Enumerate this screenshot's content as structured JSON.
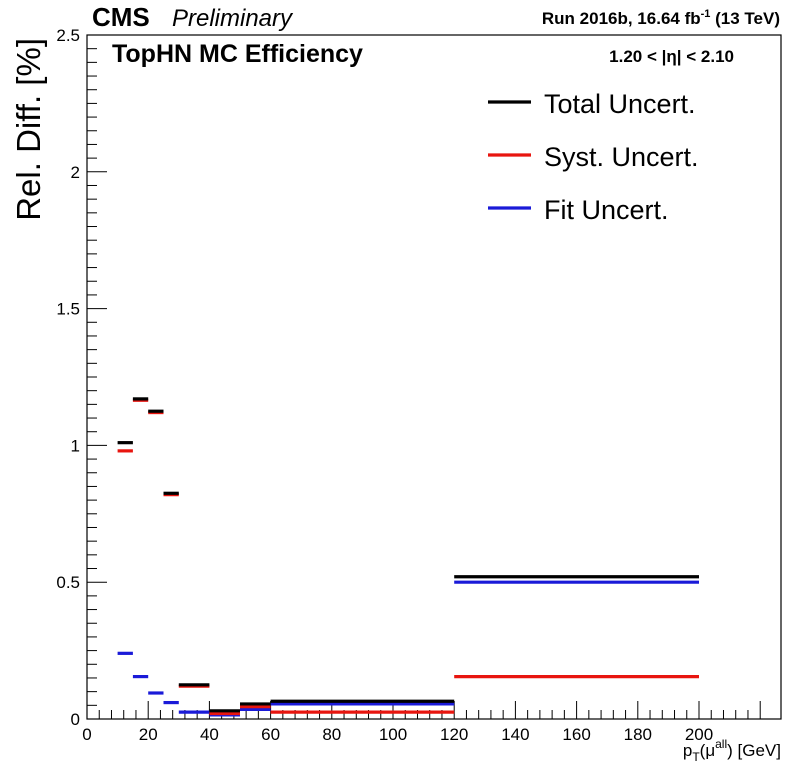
{
  "header": {
    "experiment": "CMS",
    "status": "Preliminary",
    "run_prefix": "Run 2016b,  16.64 fb",
    "run_superscript": "-1",
    "run_suffix": "  (13 TeV)",
    "plot_title": "TopHN MC Efficiency",
    "eta_range": "1.20 < |η| < 2.10"
  },
  "colors": {
    "total": "#000000",
    "syst": "#e8150f",
    "fit": "#1a1ad8"
  },
  "chart_data": {
    "type": "scatter",
    "ylabel": "Rel. Diff. [%]",
    "xlabel": {
      "base": "p",
      "sub": "T",
      "open": "(μ",
      "sup": "all",
      "close": ") [GeV]"
    },
    "xlim": [
      0,
      220
    ],
    "ylim": [
      0,
      2.5
    ],
    "x_ticks": [
      0,
      20,
      40,
      60,
      80,
      100,
      120,
      140,
      160,
      180,
      200
    ],
    "x_tick_labels": [
      "0",
      "20",
      "40",
      "60",
      "80",
      "100",
      "120",
      "140",
      "160",
      "180",
      "200"
    ],
    "y_ticks": [
      0,
      0.5,
      1,
      1.5,
      2,
      2.5
    ],
    "y_tick_labels": [
      "0",
      "0.5",
      "1",
      "1.5",
      "2",
      "2.5"
    ],
    "legend_position": "top-right",
    "series": [
      {
        "name": "Total Uncert.",
        "color": "#000000",
        "bins": [
          {
            "x": [
              10,
              15
            ],
            "y": 1.01
          },
          {
            "x": [
              15,
              20
            ],
            "y": 1.17
          },
          {
            "x": [
              20,
              25
            ],
            "y": 1.125
          },
          {
            "x": [
              25,
              30
            ],
            "y": 0.825
          },
          {
            "x": [
              30,
              40
            ],
            "y": 0.125
          },
          {
            "x": [
              40,
              50
            ],
            "y": 0.03
          },
          {
            "x": [
              50,
              60
            ],
            "y": 0.055
          },
          {
            "x": [
              60,
              120
            ],
            "y": 0.065
          },
          {
            "x": [
              120,
              200
            ],
            "y": 0.52
          }
        ]
      },
      {
        "name": "Syst. Uncert.",
        "color": "#e8150f",
        "bins": [
          {
            "x": [
              10,
              15
            ],
            "y": 0.98
          },
          {
            "x": [
              15,
              20
            ],
            "y": 1.165
          },
          {
            "x": [
              20,
              25
            ],
            "y": 1.12
          },
          {
            "x": [
              25,
              30
            ],
            "y": 0.82
          },
          {
            "x": [
              30,
              40
            ],
            "y": 0.12
          },
          {
            "x": [
              40,
              50
            ],
            "y": 0.02
          },
          {
            "x": [
              50,
              60
            ],
            "y": 0.045
          },
          {
            "x": [
              60,
              120
            ],
            "y": 0.025
          },
          {
            "x": [
              120,
              200
            ],
            "y": 0.155
          }
        ]
      },
      {
        "name": "Fit Uncert.",
        "color": "#1a1ad8",
        "bins": [
          {
            "x": [
              10,
              15
            ],
            "y": 0.24
          },
          {
            "x": [
              15,
              20
            ],
            "y": 0.155
          },
          {
            "x": [
              20,
              25
            ],
            "y": 0.095
          },
          {
            "x": [
              25,
              30
            ],
            "y": 0.06
          },
          {
            "x": [
              30,
              40
            ],
            "y": 0.025
          },
          {
            "x": [
              40,
              50
            ],
            "y": 0.015
          },
          {
            "x": [
              50,
              60
            ],
            "y": 0.035
          },
          {
            "x": [
              60,
              120
            ],
            "y": 0.055
          },
          {
            "x": [
              120,
              200
            ],
            "y": 0.5
          }
        ]
      }
    ]
  }
}
